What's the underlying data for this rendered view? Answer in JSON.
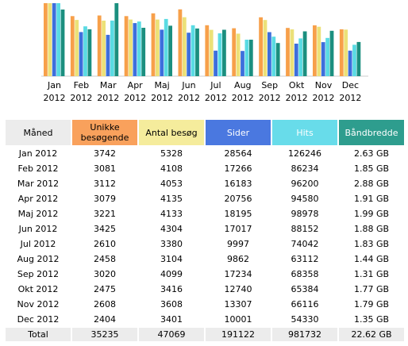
{
  "chart_data": {
    "type": "bar",
    "categories": [
      [
        "Jan",
        "2012"
      ],
      [
        "Feb",
        "2012"
      ],
      [
        "Mar",
        "2012"
      ],
      [
        "Apr",
        "2012"
      ],
      [
        "Maj",
        "2012"
      ],
      [
        "Jun",
        "2012"
      ],
      [
        "Jul",
        "2012"
      ],
      [
        "Aug",
        "2012"
      ],
      [
        "Sep",
        "2012"
      ],
      [
        "Okt",
        "2012"
      ],
      [
        "Nov",
        "2012"
      ],
      [
        "Dec",
        "2012"
      ]
    ],
    "series": [
      {
        "name": "Unikke besøgende",
        "color": "#f7a04a",
        "values": [
          3742,
          3081,
          3112,
          3079,
          3221,
          3425,
          2610,
          2458,
          3020,
          2475,
          2608,
          2404
        ]
      },
      {
        "name": "Antal besøg",
        "color": "#ece178",
        "values": [
          5328,
          4108,
          4053,
          4135,
          4133,
          4304,
          3380,
          3104,
          4099,
          3416,
          3608,
          3401
        ]
      },
      {
        "name": "Sider",
        "color": "#3d6fdc",
        "values": [
          28564,
          17266,
          16183,
          20756,
          18195,
          17017,
          9997,
          9862,
          17234,
          12740,
          13307,
          10001
        ]
      },
      {
        "name": "Hits",
        "color": "#5adbe3",
        "values": [
          126246,
          86234,
          96200,
          94580,
          98978,
          88152,
          74042,
          63112,
          68358,
          65384,
          66116,
          54330
        ]
      },
      {
        "name": "Båndbredde",
        "color": "#1b8f7f",
        "values": [
          2.63,
          1.85,
          2.88,
          1.91,
          1.99,
          1.88,
          1.83,
          1.44,
          1.31,
          1.77,
          1.79,
          1.35
        ]
      }
    ]
  },
  "table": {
    "headers": [
      "Måned",
      "Unikke besøgende",
      "Antal besøg",
      "Sider",
      "Hits",
      "Båndbredde"
    ],
    "rows": [
      [
        "Jan 2012",
        "3742",
        "5328",
        "28564",
        "126246",
        "2.63 GB"
      ],
      [
        "Feb 2012",
        "3081",
        "4108",
        "17266",
        "86234",
        "1.85 GB"
      ],
      [
        "Mar 2012",
        "3112",
        "4053",
        "16183",
        "96200",
        "2.88 GB"
      ],
      [
        "Apr 2012",
        "3079",
        "4135",
        "20756",
        "94580",
        "1.91 GB"
      ],
      [
        "Maj 2012",
        "3221",
        "4133",
        "18195",
        "98978",
        "1.99 GB"
      ],
      [
        "Jun 2012",
        "3425",
        "4304",
        "17017",
        "88152",
        "1.88 GB"
      ],
      [
        "Jul 2012",
        "2610",
        "3380",
        "9997",
        "74042",
        "1.83 GB"
      ],
      [
        "Aug 2012",
        "2458",
        "3104",
        "9862",
        "63112",
        "1.44 GB"
      ],
      [
        "Sep 2012",
        "3020",
        "4099",
        "17234",
        "68358",
        "1.31 GB"
      ],
      [
        "Okt 2012",
        "2475",
        "3416",
        "12740",
        "65384",
        "1.77 GB"
      ],
      [
        "Nov 2012",
        "2608",
        "3608",
        "13307",
        "66116",
        "1.79 GB"
      ],
      [
        "Dec 2012",
        "2404",
        "3401",
        "10001",
        "54330",
        "1.35 GB"
      ]
    ],
    "total": [
      "Total",
      "35235",
      "47069",
      "191122",
      "981732",
      "22.62 GB"
    ]
  }
}
